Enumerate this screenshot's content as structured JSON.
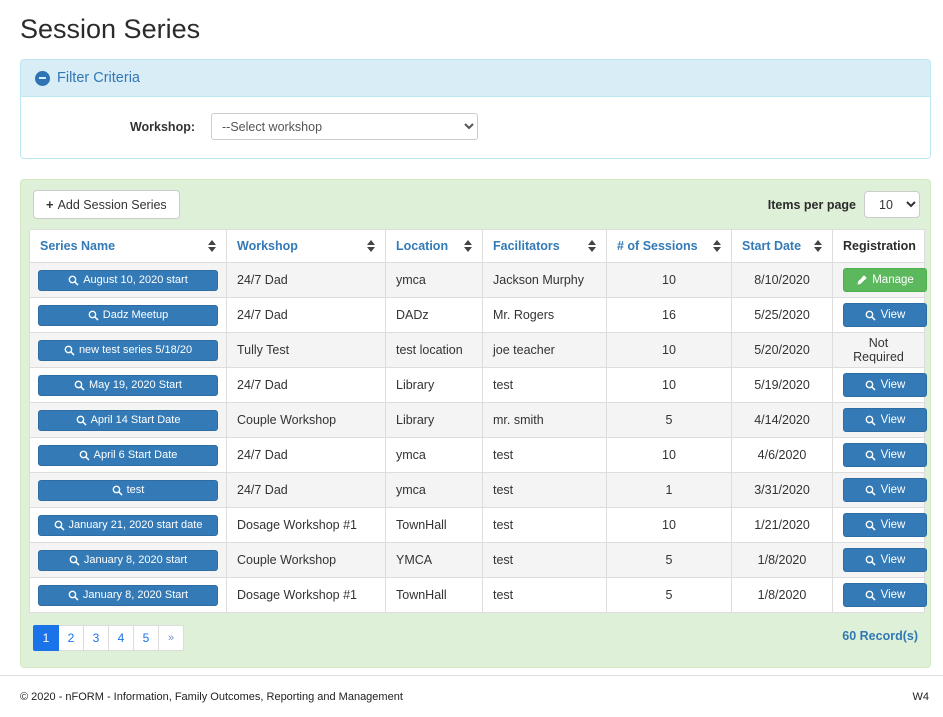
{
  "page": {
    "title": "Session Series"
  },
  "filter": {
    "title": "Filter Criteria",
    "workshop_label": "Workshop:",
    "workshop_selected": "--Select workshop"
  },
  "toolbar": {
    "add_button_label": "Add Session Series",
    "items_per_page_label": "Items per page",
    "items_per_page_value": "10"
  },
  "table": {
    "columns": [
      {
        "label": "Series Name",
        "sortable": true
      },
      {
        "label": "Workshop",
        "sortable": true
      },
      {
        "label": "Location",
        "sortable": true
      },
      {
        "label": "Facilitators",
        "sortable": true
      },
      {
        "label": "# of Sessions",
        "sortable": true
      },
      {
        "label": "Start Date",
        "sortable": true
      },
      {
        "label": "Registration",
        "sortable": false
      }
    ],
    "rows": [
      {
        "series_name": "August 10, 2020 start",
        "workshop": "24/7 Dad",
        "location": "ymca",
        "facilitators": "Jackson Murphy",
        "sessions": "10",
        "start_date": "8/10/2020",
        "registration": {
          "type": "manage",
          "label": "Manage"
        }
      },
      {
        "series_name": "Dadz Meetup",
        "workshop": "24/7 Dad",
        "location": "DADz",
        "facilitators": "Mr. Rogers",
        "sessions": "16",
        "start_date": "5/25/2020",
        "registration": {
          "type": "view",
          "label": "View"
        }
      },
      {
        "series_name": "new test series 5/18/20",
        "workshop": "Tully Test",
        "location": "test location",
        "facilitators": "joe teacher",
        "sessions": "10",
        "start_date": "5/20/2020",
        "registration": {
          "type": "text",
          "label": "Not Required"
        }
      },
      {
        "series_name": "May 19, 2020 Start",
        "workshop": "24/7 Dad",
        "location": "Library",
        "facilitators": "test",
        "sessions": "10",
        "start_date": "5/19/2020",
        "registration": {
          "type": "view",
          "label": "View"
        }
      },
      {
        "series_name": "April 14 Start Date",
        "workshop": "Couple Workshop",
        "location": "Library",
        "facilitators": "mr. smith",
        "sessions": "5",
        "start_date": "4/14/2020",
        "registration": {
          "type": "view",
          "label": "View"
        }
      },
      {
        "series_name": "April 6 Start Date",
        "workshop": "24/7 Dad",
        "location": "ymca",
        "facilitators": "test",
        "sessions": "10",
        "start_date": "4/6/2020",
        "registration": {
          "type": "view",
          "label": "View"
        }
      },
      {
        "series_name": "test",
        "workshop": "24/7 Dad",
        "location": "ymca",
        "facilitators": "test",
        "sessions": "1",
        "start_date": "3/31/2020",
        "registration": {
          "type": "view",
          "label": "View"
        }
      },
      {
        "series_name": "January 21, 2020 start date",
        "workshop": "Dosage Workshop #1",
        "location": "TownHall",
        "facilitators": "test",
        "sessions": "10",
        "start_date": "1/21/2020",
        "registration": {
          "type": "view",
          "label": "View"
        }
      },
      {
        "series_name": "January 8, 2020 start",
        "workshop": "Couple Workshop",
        "location": "YMCA",
        "facilitators": "test",
        "sessions": "5",
        "start_date": "1/8/2020",
        "registration": {
          "type": "view",
          "label": "View"
        }
      },
      {
        "series_name": "January 8, 2020 Start",
        "workshop": "Dosage Workshop #1",
        "location": "TownHall",
        "facilitators": "test",
        "sessions": "5",
        "start_date": "1/8/2020",
        "registration": {
          "type": "view",
          "label": "View"
        }
      }
    ]
  },
  "pagination": {
    "pages": [
      "1",
      "2",
      "3",
      "4",
      "5"
    ],
    "active_page": "1",
    "next_label": "»",
    "records_label": "60 Record(s)"
  },
  "footer": {
    "copyright": "© 2020 - nFORM - Information, Family Outcomes, Reporting and Management",
    "version": "W4"
  },
  "colors": {
    "primary": "#337ab7",
    "primary_border": "#2e6da4",
    "success": "#5cb85c",
    "success_border": "#4cae4c",
    "info_bg": "#d9edf7",
    "info_border": "#bce8f1",
    "info_text": "#3178b4",
    "panel_bg": "#dff0d8",
    "panel_border": "#d6e9c6",
    "pagination_active": "#1a73e8"
  }
}
